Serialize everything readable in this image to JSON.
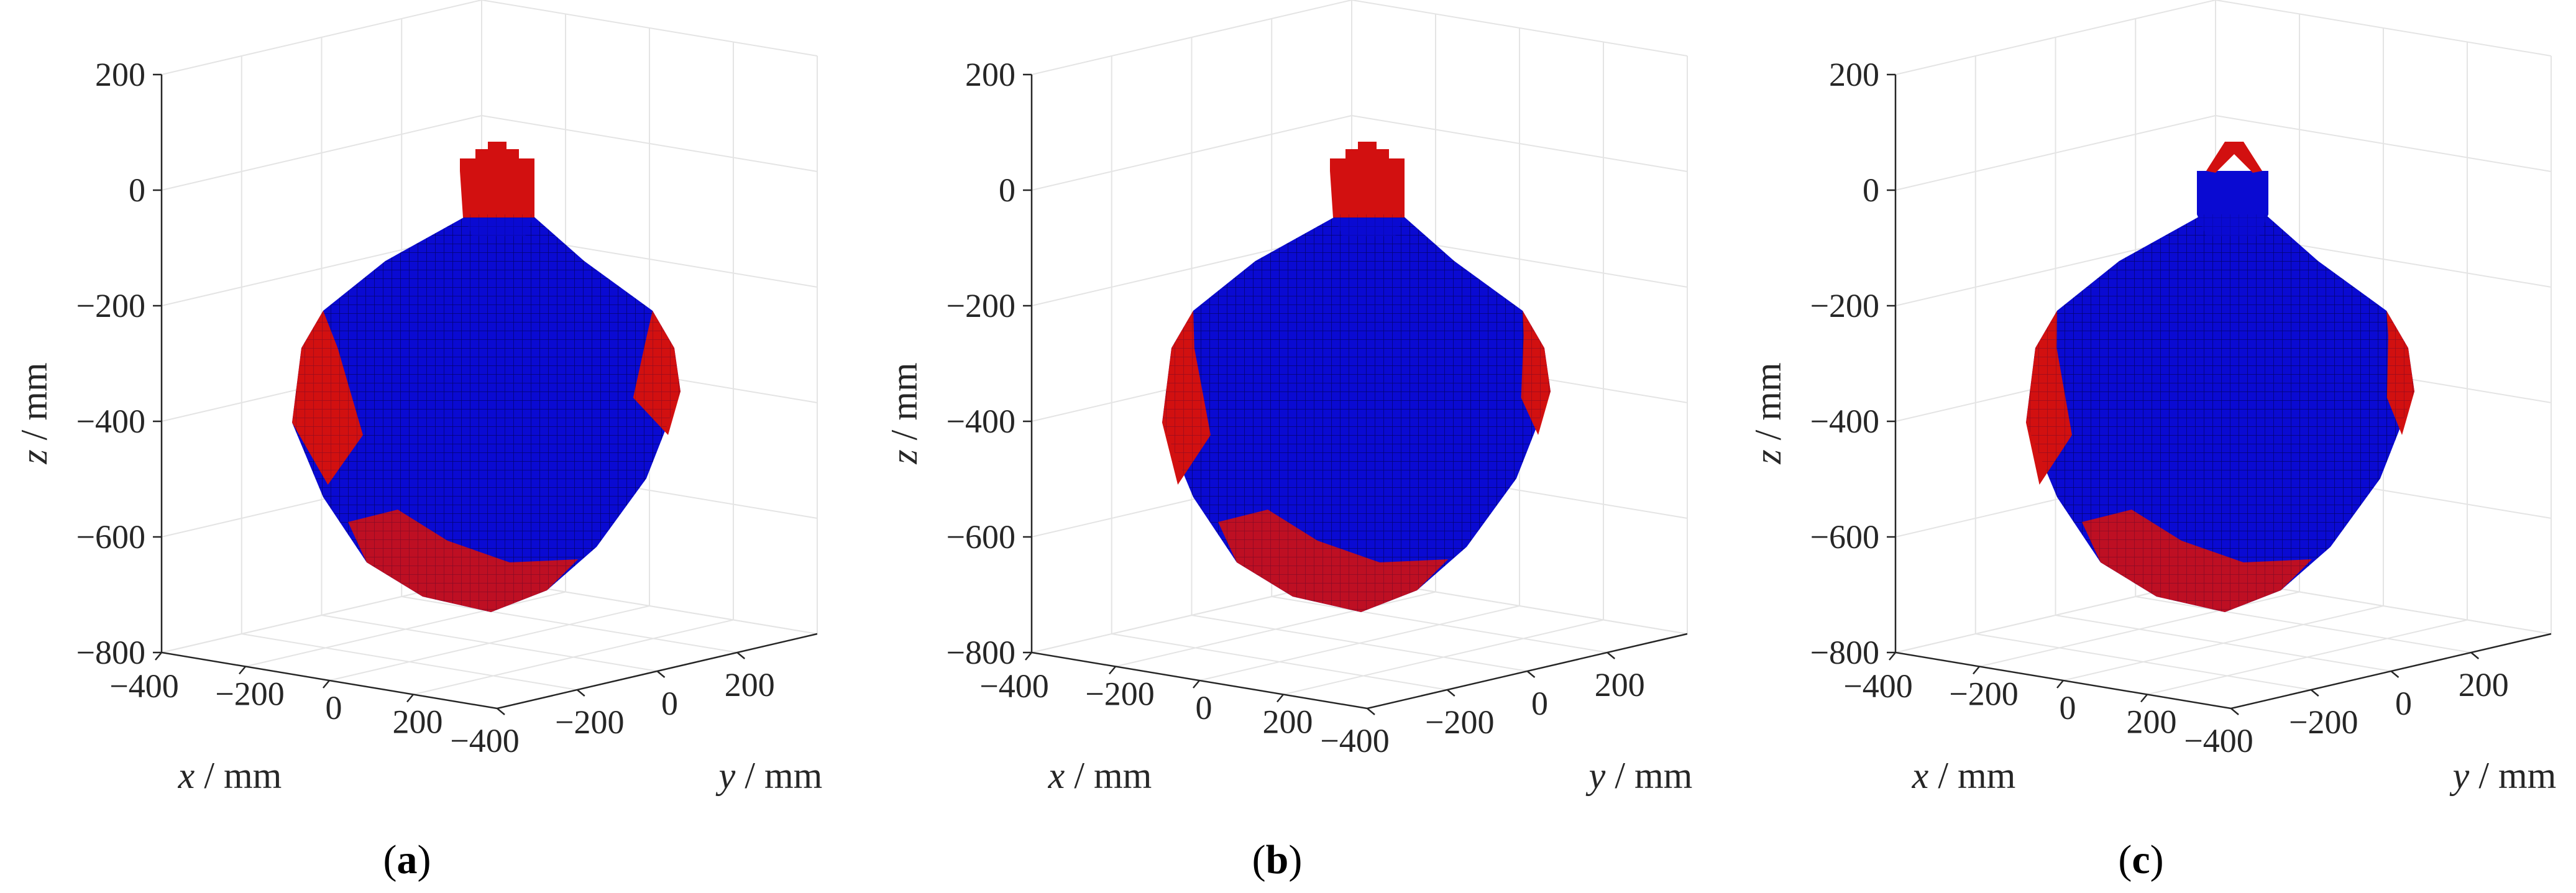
{
  "chart_data": [
    {
      "type": "3d-voxel",
      "panel_letter": "a",
      "x_axis": {
        "var": "x",
        "unit": "mm",
        "ticks": [
          "−400",
          "−200",
          "0",
          "200"
        ]
      },
      "y_axis": {
        "var": "y",
        "unit": "mm",
        "ticks": [
          "−400",
          "−200",
          "0",
          "200"
        ]
      },
      "z_axis": {
        "var": "z",
        "unit": "mm",
        "ticks": [
          "200",
          "0",
          "−200",
          "−400",
          "−600",
          "−800"
        ]
      },
      "xlim": [
        -400,
        400
      ],
      "ylim": [
        -400,
        400
      ],
      "zlim": [
        -800,
        200
      ],
      "colors": {
        "voxel_primary": "#0a0ad2",
        "voxel_secondary": "#d21010"
      }
    },
    {
      "type": "3d-voxel",
      "panel_letter": "b",
      "x_axis": {
        "var": "x",
        "unit": "mm",
        "ticks": [
          "−400",
          "−200",
          "0",
          "200"
        ]
      },
      "y_axis": {
        "var": "y",
        "unit": "mm",
        "ticks": [
          "−400",
          "−200",
          "0",
          "200"
        ]
      },
      "z_axis": {
        "var": "z",
        "unit": "mm",
        "ticks": [
          "200",
          "0",
          "−200",
          "−400",
          "−600",
          "−800"
        ]
      },
      "xlim": [
        -400,
        400
      ],
      "ylim": [
        -400,
        400
      ],
      "zlim": [
        -800,
        200
      ],
      "colors": {
        "voxel_primary": "#0a0ad2",
        "voxel_secondary": "#d21010"
      }
    },
    {
      "type": "3d-voxel",
      "panel_letter": "c",
      "x_axis": {
        "var": "x",
        "unit": "mm",
        "ticks": [
          "−400",
          "−200",
          "0",
          "200"
        ]
      },
      "y_axis": {
        "var": "y",
        "unit": "mm",
        "ticks": [
          "−400",
          "−200",
          "0",
          "200"
        ]
      },
      "z_axis": {
        "var": "z",
        "unit": "mm",
        "ticks": [
          "200",
          "0",
          "−200",
          "−400",
          "−600",
          "−800"
        ]
      },
      "xlim": [
        -400,
        400
      ],
      "ylim": [
        -400,
        400
      ],
      "zlim": [
        -800,
        200
      ],
      "colors": {
        "voxel_primary": "#0a0ad2",
        "voxel_secondary": "#d21010"
      }
    }
  ]
}
